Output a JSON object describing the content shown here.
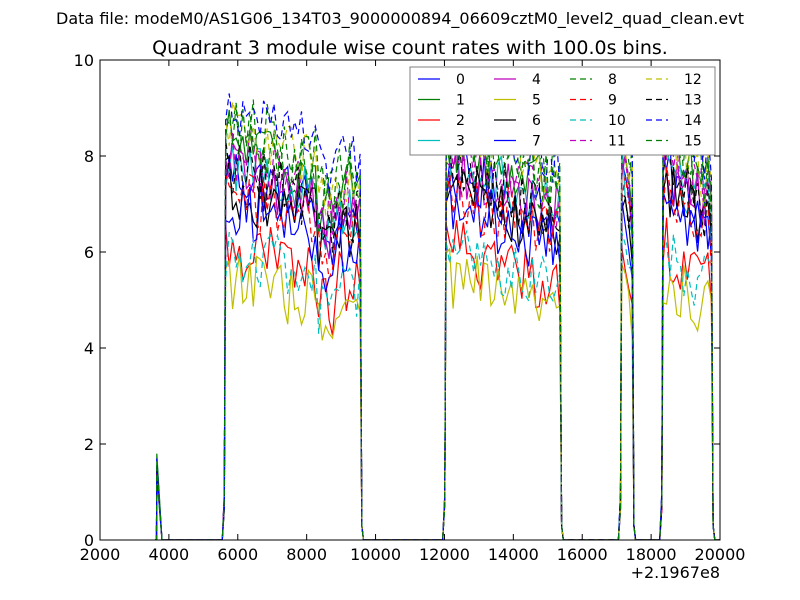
{
  "chart_data": {
    "type": "line",
    "supertitle": "Data file: modeM0/AS1G06_134T03_9000000894_06609cztM0_level2_quad_clean.evt",
    "title": "Quadrant 3 module wise count rates with 100.0s bins.",
    "xlabel": "",
    "ylabel": "",
    "xlim": [
      2000,
      20000
    ],
    "ylim": [
      0,
      10
    ],
    "x_offset_label": "+2.1967e8",
    "x_ticks": [
      2000,
      4000,
      6000,
      8000,
      10000,
      12000,
      14000,
      16000,
      18000,
      20000
    ],
    "y_ticks": [
      0,
      2,
      4,
      6,
      8,
      10
    ],
    "grid": false,
    "legend_position": "top-right",
    "segments": [
      {
        "start": 3650,
        "end": 3800
      },
      {
        "start": 5650,
        "end": 9550
      },
      {
        "start": 12050,
        "end": 15350
      },
      {
        "start": 17150,
        "end": 17450
      },
      {
        "start": 18350,
        "end": 19750
      }
    ],
    "series": [
      {
        "name": "0",
        "color": "#0000ff",
        "dash": "solid",
        "level": 6.9,
        "start_value": 1.5
      },
      {
        "name": "1",
        "color": "#008000",
        "dash": "solid",
        "level": 7.5,
        "start_value": 1.8
      },
      {
        "name": "2",
        "color": "#ff0000",
        "dash": "solid",
        "level": 5.5,
        "start_value": 1.4
      },
      {
        "name": "3",
        "color": "#00bfbf",
        "dash": "solid",
        "level": 7.1,
        "start_value": 1.5
      },
      {
        "name": "4",
        "color": "#bf00bf",
        "dash": "solid",
        "level": 7.0,
        "start_value": 1.4
      },
      {
        "name": "5",
        "color": "#bfbf00",
        "dash": "solid",
        "level": 4.9,
        "start_value": 1.3
      },
      {
        "name": "6",
        "color": "#000000",
        "dash": "solid",
        "level": 6.6,
        "start_value": 1.5
      },
      {
        "name": "7",
        "color": "#0000ff",
        "dash": "solid",
        "level": 6.3,
        "start_value": 1.4
      },
      {
        "name": "8",
        "color": "#008000",
        "dash": "dashed",
        "level": 7.9,
        "start_value": 1.6
      },
      {
        "name": "9",
        "color": "#ff0000",
        "dash": "dashed",
        "level": 6.5,
        "start_value": 1.4
      },
      {
        "name": "10",
        "color": "#00bfbf",
        "dash": "dashed",
        "level": 5.4,
        "start_value": 1.3
      },
      {
        "name": "11",
        "color": "#bf00bf",
        "dash": "dashed",
        "level": 7.3,
        "start_value": 1.5
      },
      {
        "name": "12",
        "color": "#bfbf00",
        "dash": "dashed",
        "level": 7.7,
        "start_value": 1.6
      },
      {
        "name": "13",
        "color": "#000000",
        "dash": "dashed",
        "level": 7.0,
        "start_value": 1.5
      },
      {
        "name": "14",
        "color": "#0000ff",
        "dash": "dashed",
        "level": 8.2,
        "start_value": 1.7
      },
      {
        "name": "15",
        "color": "#008000",
        "dash": "dashed",
        "level": 7.6,
        "start_value": 1.6
      }
    ]
  }
}
